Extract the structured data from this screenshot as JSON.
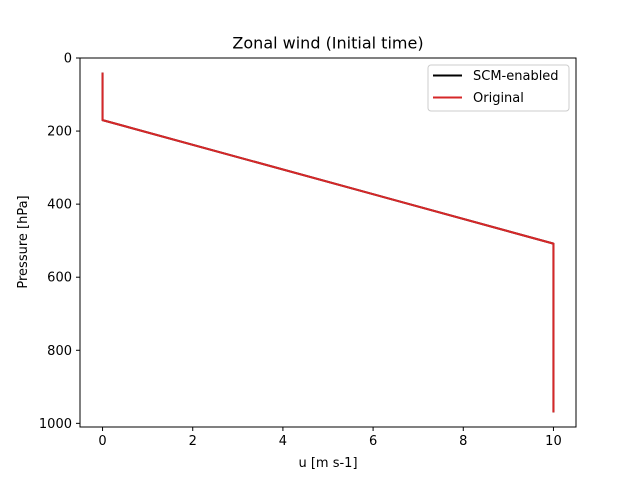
{
  "chart_data": {
    "type": "line",
    "title": "Zonal wind (Initial time)",
    "xlabel": "u [m s-1]",
    "ylabel": "Pressure [hPa]",
    "xlim": [
      -0.5,
      10.5
    ],
    "ylim": [
      1010,
      0
    ],
    "y_inverted": true,
    "xticks": [
      0,
      2,
      4,
      6,
      8,
      10
    ],
    "yticks": [
      0,
      200,
      400,
      600,
      800,
      1000
    ],
    "grid": false,
    "legend": "top-right",
    "series": [
      {
        "name": "SCM-enabled",
        "color": "#000000",
        "x": [
          0,
          0,
          10,
          10
        ],
        "y": [
          40,
          170,
          508,
          970
        ]
      },
      {
        "name": "Original",
        "color": "#d62728",
        "x": [
          0,
          0,
          10,
          10
        ],
        "y": [
          40,
          170,
          508,
          970
        ]
      }
    ]
  }
}
